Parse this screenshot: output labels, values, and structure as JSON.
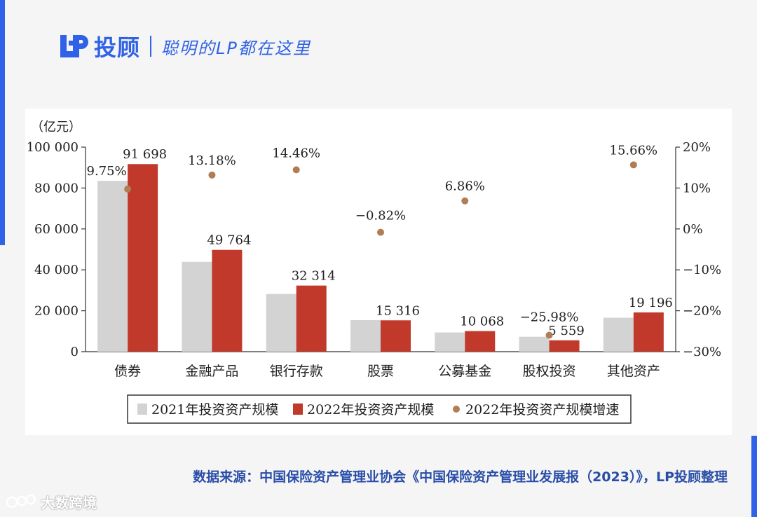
{
  "header": {
    "brand": "投顾",
    "slogan": "聪明的LP都在这里"
  },
  "source_note": "数据来源：中国保险资产管理业协会《中国保险资产管理业发展报（2023）》，LP投顾整理",
  "watermark": "大数跨境",
  "colors": {
    "accent": "#2f62e6",
    "series_2021": "#d3d3d3",
    "series_2022": "#c0392b",
    "growth_dot": "#b07d55"
  },
  "chart_data": {
    "type": "bar",
    "unit_label": "（亿元）",
    "categories": [
      "债券",
      "金融产品",
      "银行存款",
      "股票",
      "公募基金",
      "股权投资",
      "其他资产"
    ],
    "series": [
      {
        "name": "2021年投资资产规模",
        "values": [
          83500,
          43900,
          28200,
          15400,
          9400,
          7300,
          16600
        ]
      },
      {
        "name": "2022年投资资产规模",
        "values": [
          91698,
          49764,
          32314,
          15316,
          10068,
          5559,
          19196
        ],
        "labels": [
          "91 698",
          "49 764",
          "32 314",
          "15 316",
          "10 068",
          "5 559",
          "19 196"
        ]
      }
    ],
    "growth": {
      "name": "2022年投资资产规模增速",
      "values": [
        9.75,
        13.18,
        14.46,
        -0.82,
        6.86,
        -25.98,
        15.66
      ],
      "labels": [
        "9.75%",
        "13.18%",
        "14.46%",
        "−0.82%",
        "6.86%",
        "−25.98%",
        "15.66%"
      ]
    },
    "y_left": {
      "range": [
        0,
        100000
      ],
      "ticks": [
        "0",
        "20 000",
        "40 000",
        "60 000",
        "80 000",
        "100 000"
      ]
    },
    "y_right": {
      "range": [
        -30,
        20
      ],
      "ticks": [
        "−30%",
        "−20%",
        "−10%",
        "0%",
        "10%",
        "20%"
      ]
    },
    "legend_position": "bottom",
    "grid": false
  }
}
